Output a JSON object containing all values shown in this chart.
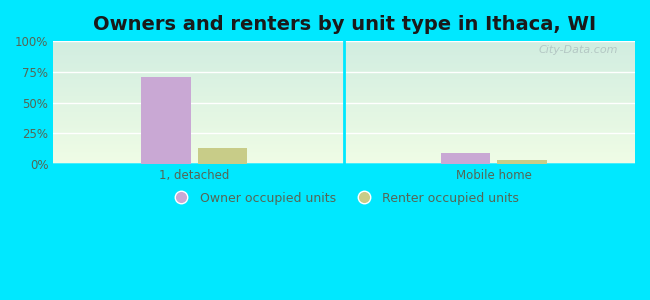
{
  "title": "Owners and renters by unit type in Ithaca, WI",
  "categories": [
    "1, detached",
    "Mobile home"
  ],
  "owner_values": [
    70.5,
    9.5
  ],
  "renter_values": [
    13.5,
    3.5
  ],
  "owner_color": "#c9a8d4",
  "renter_color": "#c8cc88",
  "bar_width": 0.28,
  "ylim": [
    0,
    100
  ],
  "yticks": [
    0,
    25,
    50,
    75,
    100
  ],
  "ytick_labels": [
    "0%",
    "25%",
    "50%",
    "75%",
    "100%"
  ],
  "bg_colors": [
    "#cce8d8",
    "#e8f5e0",
    "#f2fce8",
    "#ffffff"
  ],
  "outer_bg": "#00e8ff",
  "legend_owner": "Owner occupied units",
  "legend_renter": "Renter occupied units",
  "watermark": "City-Data.com",
  "title_fontsize": 14,
  "axis_fontsize": 8.5,
  "legend_fontsize": 9,
  "grid_color": "#e0ece0",
  "tick_color": "#556655",
  "separator_color": "#00e8ff"
}
